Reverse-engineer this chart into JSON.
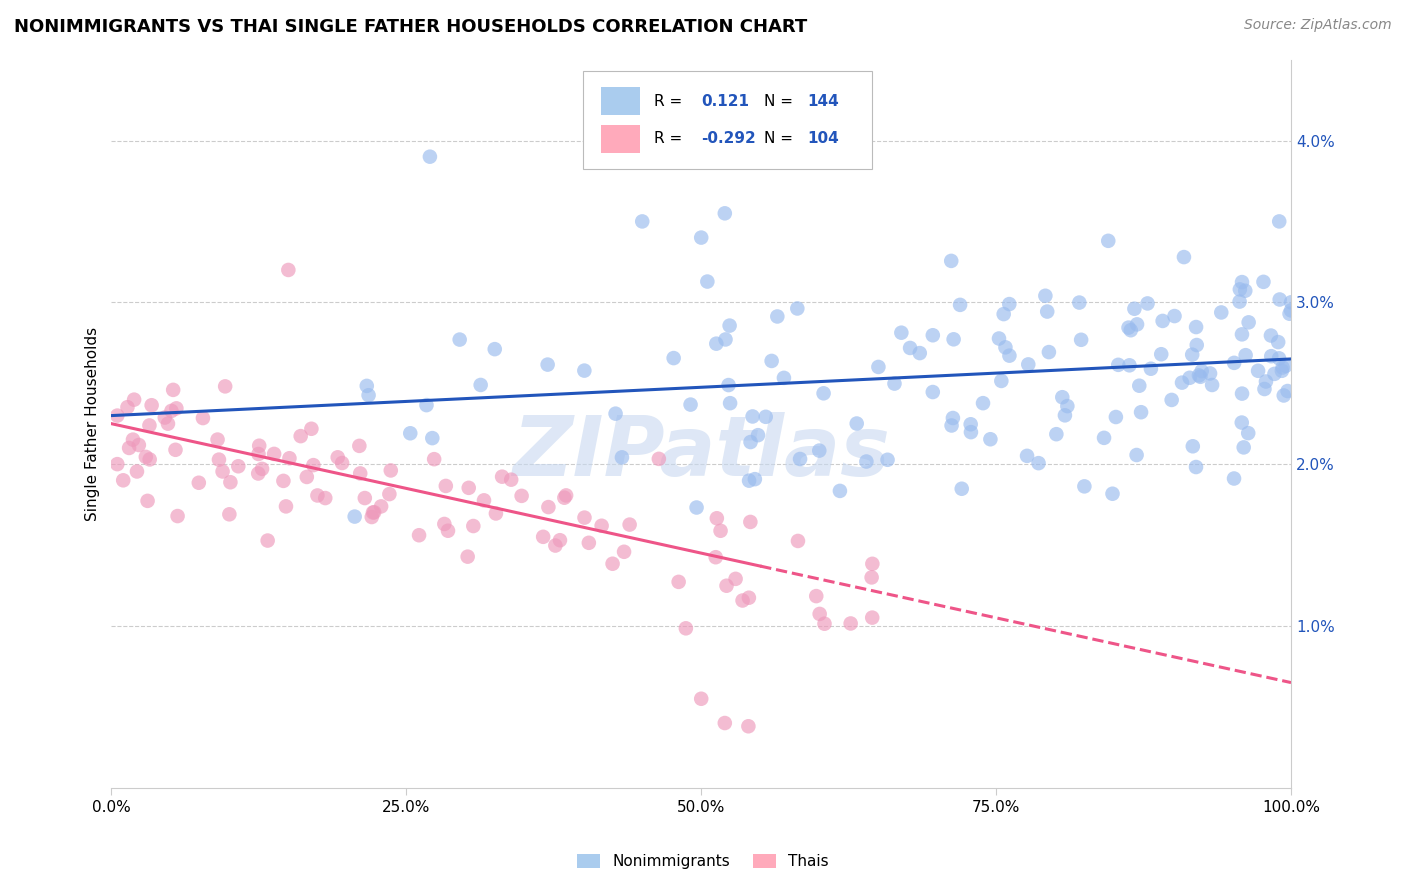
{
  "title": "NONIMMIGRANTS VS THAI SINGLE FATHER HOUSEHOLDS CORRELATION CHART",
  "source": "Source: ZipAtlas.com",
  "ylabel": "Single Father Households",
  "xlim": [
    0,
    100
  ],
  "ylim": [
    0,
    4.5
  ],
  "yticks": [
    1.0,
    2.0,
    3.0,
    4.0
  ],
  "xticks": [
    0,
    25,
    50,
    75,
    100
  ],
  "xtick_labels": [
    "0.0%",
    "25.0%",
    "50.0%",
    "75.0%",
    "100.0%"
  ],
  "ytick_labels": [
    "1.0%",
    "2.0%",
    "3.0%",
    "4.0%"
  ],
  "legend_labels": [
    "Nonimmigrants",
    "Thais"
  ],
  "blue_R": "0.121",
  "blue_N": "144",
  "pink_R": "-0.292",
  "pink_N": "104",
  "blue_scatter_color": "#99bbee",
  "pink_scatter_color": "#ee99bb",
  "blue_line_color": "#2255bb",
  "pink_line_color": "#ee5588",
  "blue_legend_color": "#aaccee",
  "pink_legend_color": "#ffaabb",
  "r_value_color": "#2255bb",
  "watermark_color": "#c8d8f0",
  "grid_color": "#cccccc",
  "axis_color": "#cccccc",
  "title_fontsize": 13,
  "source_fontsize": 10,
  "tick_fontsize": 11,
  "legend_fontsize": 11,
  "blue_line_start_y": 2.3,
  "blue_line_end_y": 2.65,
  "pink_line_start_y": 2.25,
  "pink_line_end_y": 0.65,
  "pink_solid_end_x": 55
}
